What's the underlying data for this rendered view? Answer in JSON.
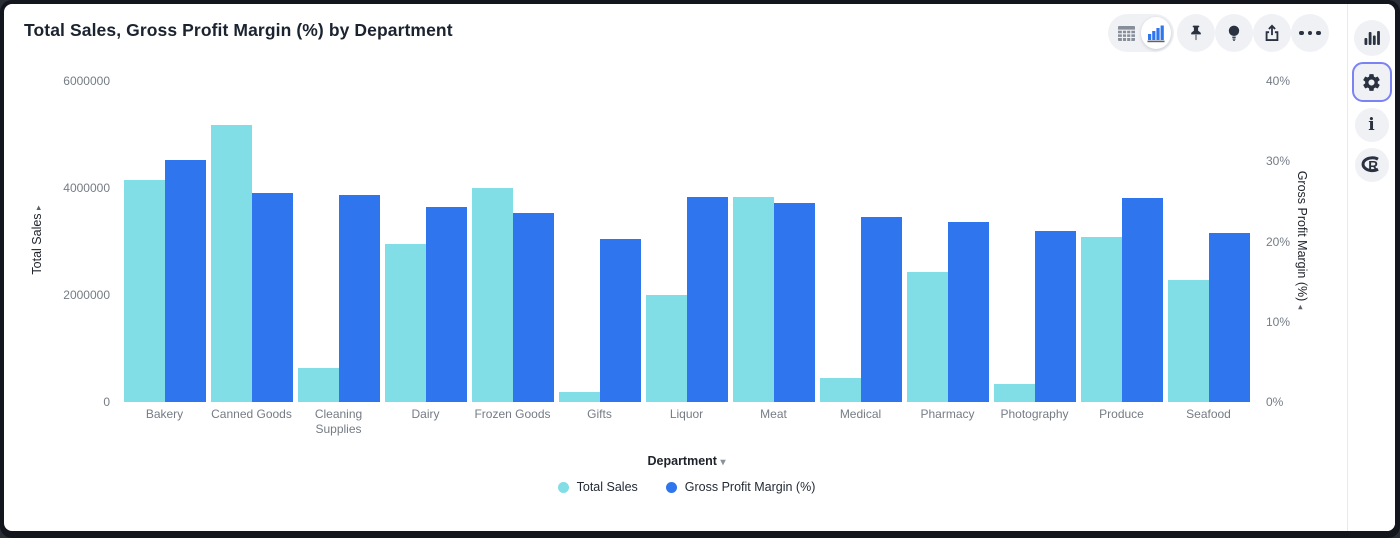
{
  "window": {
    "title": "Total Sales, Gross Profit Margin (%) by Department"
  },
  "toolbar": {
    "view_toggle": {
      "options": [
        "table-view",
        "chart-view"
      ],
      "selected": "chart-view"
    },
    "buttons": [
      "pin",
      "lightbulb",
      "share",
      "more-options"
    ]
  },
  "sidebar": {
    "buttons": [
      "chart-type",
      "settings",
      "info",
      "r-analytics"
    ],
    "active": "settings"
  },
  "chart_data": {
    "type": "bar",
    "title": "Total Sales, Gross Profit Margin (%) by Department",
    "grid": false,
    "legend_position": "bottom",
    "categories": [
      "Bakery",
      "Canned Goods",
      "Cleaning Supplies",
      "Dairy",
      "Frozen Goods",
      "Gifts",
      "Liquor",
      "Meat",
      "Medical",
      "Pharmacy",
      "Photography",
      "Produce",
      "Seafood"
    ],
    "series": [
      {
        "name": "Total Sales",
        "axis": "left",
        "color": "#81dee7",
        "values": [
          4150000,
          5180000,
          640000,
          2950000,
          4000000,
          180000,
          2000000,
          3830000,
          450000,
          2430000,
          340000,
          3080000,
          2280000
        ]
      },
      {
        "name": "Gross Profit Margin (%)",
        "axis": "right",
        "color": "#2f76ee",
        "values": [
          30.1,
          26.0,
          25.8,
          24.3,
          23.5,
          20.3,
          25.5,
          24.8,
          23.0,
          22.4,
          21.3,
          25.4,
          21.1
        ]
      }
    ],
    "left_axis": {
      "title": "Total Sales",
      "caret": "▸",
      "min": 0,
      "max": 6000000,
      "ticks": [
        "0",
        "2000000",
        "4000000",
        "6000000"
      ]
    },
    "right_axis": {
      "title": "Gross Profit Margin (%)",
      "caret": "◂",
      "min": 0,
      "max": 40,
      "ticks": [
        "0%",
        "10%",
        "20%",
        "30%",
        "40%"
      ]
    },
    "x_axis": {
      "label": "Department",
      "caret": "▾"
    },
    "legend": [
      {
        "label": "Total Sales",
        "color": "#81dee7"
      },
      {
        "label": "Gross Profit Margin (%)",
        "color": "#2f76ee"
      }
    ]
  }
}
